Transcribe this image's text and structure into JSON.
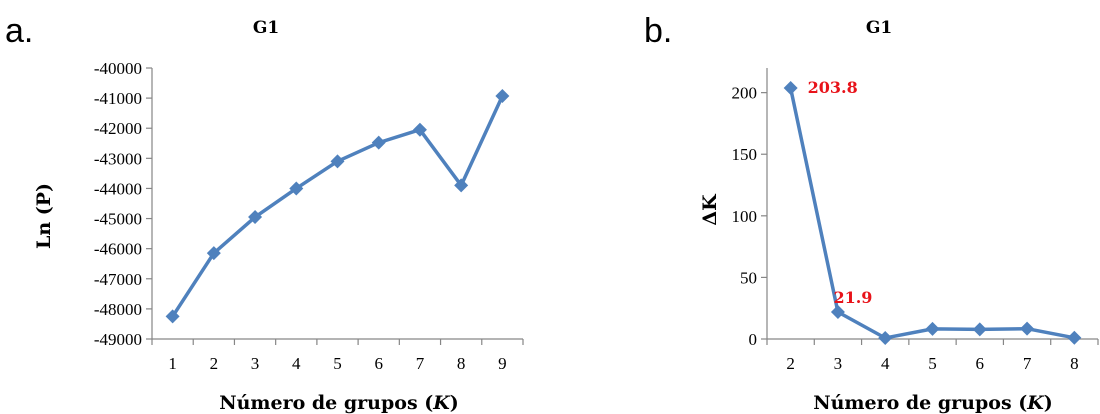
{
  "colors": {
    "series": "#4F81BD",
    "data_label": "#E8131A"
  },
  "chart_data": [
    {
      "type": "line",
      "panel_label": "a.",
      "title": "G1",
      "xlabel": "Número de grupos (K)",
      "xlabel_parts": [
        "Número de grupos (",
        "K",
        ")"
      ],
      "ylabel": "Ln (P)",
      "x": [
        1,
        2,
        3,
        4,
        5,
        6,
        7,
        8,
        9
      ],
      "series": [
        {
          "values": [
            -48250,
            -46150,
            -44950,
            -44000,
            -43100,
            -42480,
            -42050,
            -43900,
            -40930
          ]
        }
      ],
      "ylim": [
        -49000,
        -40000
      ],
      "yticks": [
        -40000,
        -41000,
        -42000,
        -43000,
        -44000,
        -45000,
        -46000,
        -47000,
        -48000,
        -49000
      ],
      "ytick_labels": [
        "-40000",
        "-41000",
        "-42000",
        "-43000",
        "-44000",
        "-45000",
        "-46000",
        "-47000",
        "-48000",
        "-49000"
      ],
      "xtick_labels": [
        "1",
        "2",
        "3",
        "4",
        "5",
        "6",
        "7",
        "8",
        "9"
      ],
      "grid": false,
      "legend": "none",
      "marker": "diamond",
      "data_labels": []
    },
    {
      "type": "line",
      "panel_label": "b.",
      "title": "G1",
      "xlabel": "Número de grupos (K)",
      "xlabel_parts": [
        "Número de grupos (",
        "K",
        ")"
      ],
      "ylabel": "ΔK",
      "x": [
        2,
        3,
        4,
        5,
        6,
        7,
        8
      ],
      "series": [
        {
          "values": [
            203.8,
            21.9,
            0.8,
            8.2,
            7.8,
            8.4,
            1.0
          ]
        }
      ],
      "ylim": [
        0,
        220
      ],
      "yticks": [
        0,
        50,
        100,
        150,
        200
      ],
      "ytick_labels": [
        "0",
        "50",
        "100",
        "150",
        "200"
      ],
      "xtick_labels": [
        "2",
        "3",
        "4",
        "5",
        "6",
        "7",
        "8"
      ],
      "grid": false,
      "legend": "none",
      "marker": "diamond",
      "data_labels": [
        {
          "x": 2,
          "y": 203.8,
          "text": "203.8",
          "position": "right"
        },
        {
          "x": 3,
          "y": 21.9,
          "text": "21.9",
          "position": "above"
        }
      ]
    }
  ]
}
